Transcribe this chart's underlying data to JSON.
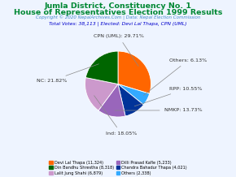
{
  "title1": "Jumla District, Constituency No. 1",
  "title2": "House of Representatives Election 1999 Results",
  "copyright": "Copyright © 2020 NepalArchives.Com | Data: Nepal Election Commission",
  "total_votes_line": "Total Votes: 38,113 | Elected: Devi Lal Thapa, CPN (UML)",
  "slices": [
    {
      "label": "CPN (UML): 29.71%",
      "pct": 29.71,
      "color": "#FF6600"
    },
    {
      "label": "Others: 6.13%",
      "pct": 6.13,
      "color": "#33AAFF"
    },
    {
      "label": "RPP: 10.55%",
      "pct": 10.55,
      "color": "#003399"
    },
    {
      "label": "NMKP: 13.73%",
      "pct": 13.73,
      "color": "#9966BB"
    },
    {
      "label": "Ind: 18.05%",
      "pct": 18.05,
      "color": "#CC99CC"
    },
    {
      "label": "NC: 21.82%",
      "pct": 21.82,
      "color": "#006600"
    }
  ],
  "legend_entries": [
    {
      "label": "Devi Lal Thapa (11,324)",
      "color": "#FF6600"
    },
    {
      "label": "Din Bandhu Shrestha (8,318)",
      "color": "#006600"
    },
    {
      "label": "Lalit Jung Shahi (6,879)",
      "color": "#CC99CC"
    },
    {
      "label": "Dilli Prasad Kafle (5,233)",
      "color": "#9966BB"
    },
    {
      "label": "Chandra Bahadur Thapa (4,021)",
      "color": "#003399"
    },
    {
      "label": "Others (2,338)",
      "color": "#33AAFF"
    }
  ],
  "title_color": "#008833",
  "copyright_color": "#4488CC",
  "total_votes_color": "#0000CC",
  "bg_color": "#EEF4FF"
}
